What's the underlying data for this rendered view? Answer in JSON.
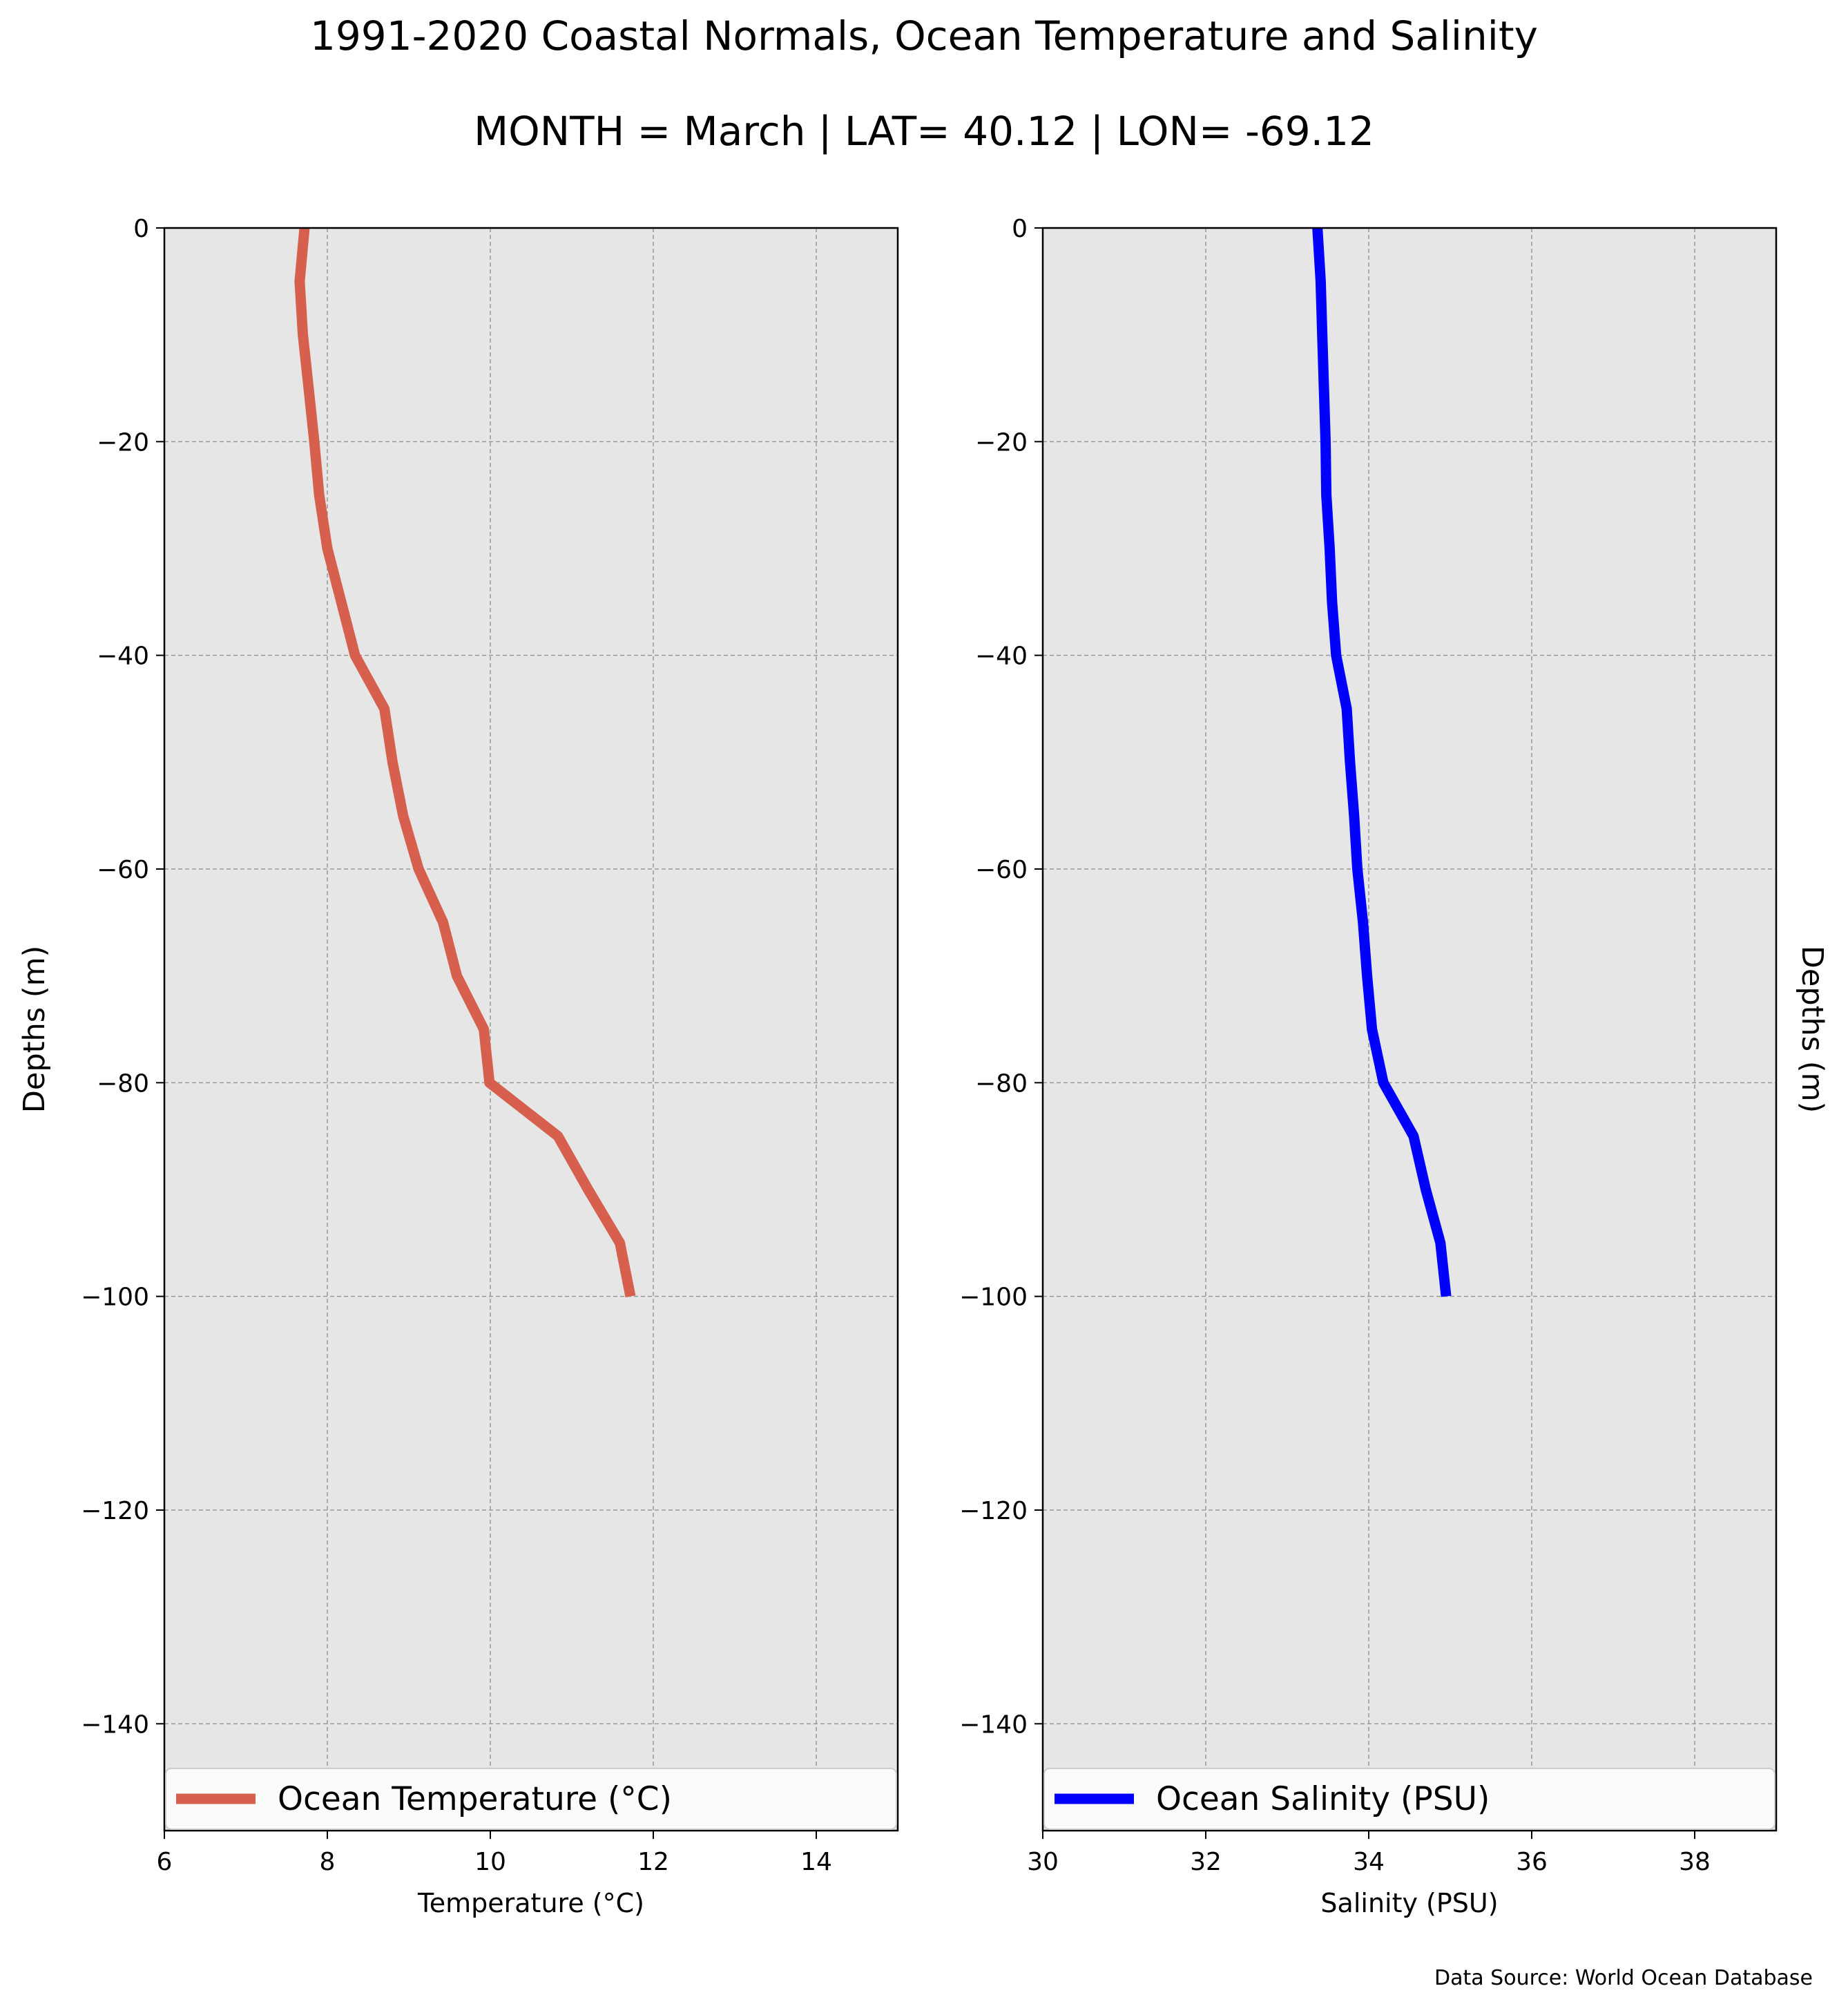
{
  "figure": {
    "title": "1991-2020 Coastal Normals, Ocean Temperature and Salinity",
    "subtitle": "MONTH = March | LAT= 40.12 | LON= -69.12",
    "source_note": "Data Source: World Ocean Database"
  },
  "chart_data": [
    {
      "type": "line",
      "xlabel": "Temperature (°C)",
      "ylabel": "Depths (m)",
      "xlim": [
        6,
        15
      ],
      "ylim": [
        -150,
        0
      ],
      "x_ticks": [
        6,
        8,
        10,
        12,
        14
      ],
      "y_ticks": [
        0,
        -20,
        -40,
        -60,
        -80,
        -100,
        -120,
        -140
      ],
      "grid": true,
      "legend_position": "bottom",
      "color": "#d65f4d",
      "series": [
        {
          "name": "Ocean Temperature (°C)",
          "x": [
            7.72,
            7.66,
            7.7,
            7.77,
            7.84,
            7.9,
            8.0,
            8.17,
            8.34,
            8.7,
            8.8,
            8.93,
            9.12,
            9.42,
            9.59,
            9.92,
            9.99,
            10.83,
            11.2,
            11.59,
            11.72
          ],
          "y": [
            0,
            -5,
            -10,
            -15,
            -20,
            -25,
            -30,
            -35,
            -40,
            -45,
            -50,
            -55,
            -60,
            -65,
            -70,
            -75,
            -80,
            -85,
            -90,
            -95,
            -100
          ]
        }
      ]
    },
    {
      "type": "line",
      "xlabel": "Salinity (PSU)",
      "ylabel": "Depths (m)",
      "xlim": [
        30,
        39
      ],
      "ylim": [
        -150,
        0
      ],
      "x_ticks": [
        30,
        32,
        34,
        36,
        38
      ],
      "y_ticks": [
        0,
        -20,
        -40,
        -60,
        -80,
        -100,
        -120,
        -140
      ],
      "grid": true,
      "legend_position": "bottom",
      "color": "#0000ff",
      "series": [
        {
          "name": "Ocean Salinity (PSU)",
          "x": [
            33.37,
            33.41,
            33.43,
            33.45,
            33.47,
            33.48,
            33.52,
            33.55,
            33.6,
            33.73,
            33.77,
            33.82,
            33.86,
            33.93,
            33.98,
            34.04,
            34.18,
            34.55,
            34.7,
            34.88,
            34.95
          ],
          "y": [
            0,
            -5,
            -10,
            -15,
            -20,
            -25,
            -30,
            -35,
            -40,
            -45,
            -50,
            -55,
            -60,
            -65,
            -70,
            -75,
            -80,
            -85,
            -90,
            -95,
            -100
          ]
        }
      ]
    }
  ]
}
